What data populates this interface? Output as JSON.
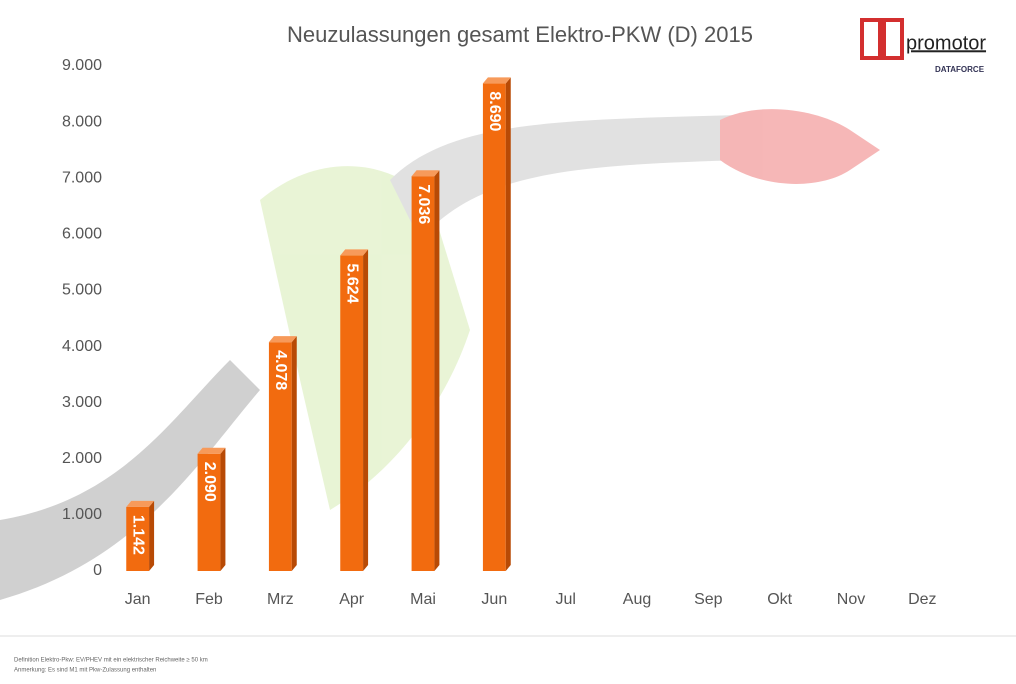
{
  "chart_data": {
    "type": "bar",
    "title": "Neuzulassungen gesamt Elektro-PKW (D) 2015",
    "categories": [
      "Jan",
      "Feb",
      "Mrz",
      "Apr",
      "Mai",
      "Jun",
      "Jul",
      "Aug",
      "Sep",
      "Okt",
      "Nov",
      "Dez"
    ],
    "values": [
      1142,
      2090,
      4078,
      5624,
      7036,
      8690,
      null,
      null,
      null,
      null,
      null,
      null
    ],
    "value_labels": [
      "1.142",
      "2.090",
      "4.078",
      "5.624",
      "7.036",
      "8.690",
      null,
      null,
      null,
      null,
      null,
      null
    ],
    "color": "#f26b0f",
    "ylim": [
      0,
      9000
    ],
    "yticks": [
      0,
      {
        "value": 1000,
        "label": "1.000"
      },
      {
        "value": 2000,
        "label": "2.000"
      },
      {
        "value": 3000,
        "label": "3.000"
      },
      {
        "value": 4000,
        "label": "4.000"
      },
      {
        "value": 5000,
        "label": "5.000"
      },
      {
        "value": 6000,
        "label": "6.000"
      },
      {
        "value": 7000,
        "label": "7.000"
      },
      {
        "value": 8000,
        "label": "8.000"
      },
      {
        "value": 9000,
        "label": "9.000"
      }
    ],
    "grid": false
  },
  "logo": {
    "name": "promotor",
    "sub": "DATAFORCE"
  },
  "footnotes": [
    "Definition Elektro-Pkw: EV/PHEV mit ein elektrischer Reichweite ≥ 50 km",
    "Anmerkung: Es sind M1 mit Pkw-Zulassung enthalten"
  ]
}
